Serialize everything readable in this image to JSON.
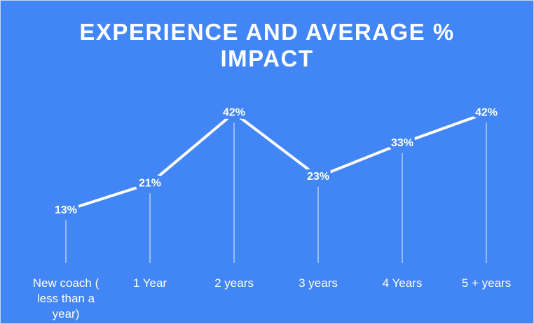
{
  "chart_data": {
    "type": "line",
    "title": "EXPERIENCE AND AVERAGE % IMPACT",
    "categories": [
      "New coach ( less than a year)",
      "1 Year",
      "2 years",
      "3 years",
      "4 Years",
      "5 + years"
    ],
    "values": [
      13,
      21,
      42,
      23,
      33,
      42
    ],
    "value_labels": [
      "13%",
      "21%",
      "42%",
      "23%",
      "33%",
      "42%"
    ],
    "color": "#ffffff",
    "background": "#4285f4",
    "ylim": [
      0,
      45
    ]
  }
}
